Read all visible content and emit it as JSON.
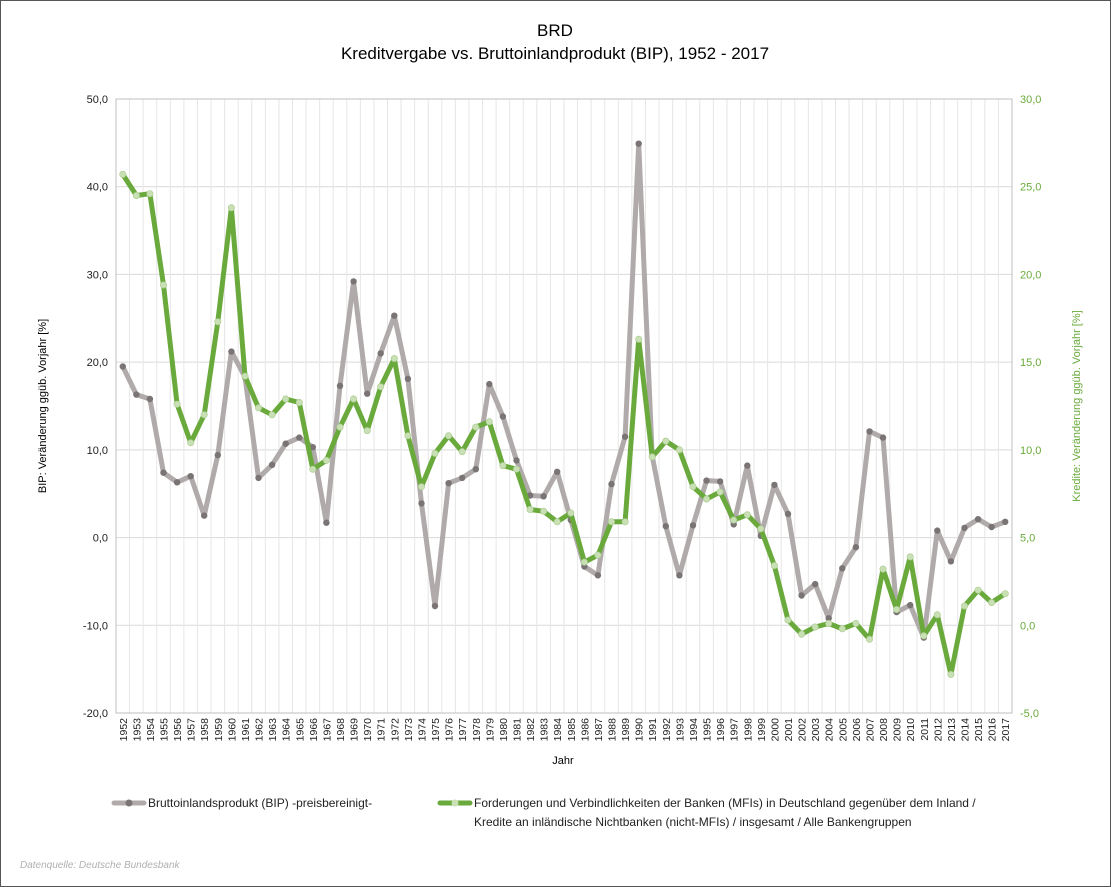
{
  "chart_data": {
    "type": "line",
    "title": "BRD",
    "subtitle": "Kreditvergabe vs. Bruttoinlandprodukt (BIP), 1952 - 2017",
    "xlabel": "Jahr",
    "ylabel_left": "BIP: Veränderung ggüb. Vorjahr [%]",
    "ylabel_right": "Kredite: Veränderung ggüb. Vorjahr [%]",
    "ylim_left": [
      -20,
      50
    ],
    "ylim_right": [
      -5,
      30
    ],
    "yticks_left": [
      "50,0",
      "40,0",
      "30,0",
      "20,0",
      "10,0",
      "0,0",
      "-10,0",
      "-20,0"
    ],
    "yticks_right": [
      "30,0",
      "25,0",
      "20,0",
      "15,0",
      "10,0",
      "5,0",
      "0,0",
      "-5,0"
    ],
    "grid": true,
    "legend_position": "bottom",
    "x": [
      "1952",
      "1953",
      "1954",
      "1955",
      "1956",
      "1957",
      "1958",
      "1959",
      "1960",
      "1961",
      "1962",
      "1963",
      "1964",
      "1965",
      "1966",
      "1967",
      "1968",
      "1969",
      "1970",
      "1971",
      "1972",
      "1973",
      "1974",
      "1975",
      "1976",
      "1977",
      "1978",
      "1979",
      "1980",
      "1981",
      "1982",
      "1983",
      "1984",
      "1985",
      "1986",
      "1987",
      "1988",
      "1989",
      "1990",
      "1991",
      "1992",
      "1993",
      "1994",
      "1995",
      "1996",
      "1997",
      "1998",
      "1999",
      "2000",
      "2001",
      "2002",
      "2003",
      "2004",
      "2005",
      "2006",
      "2007",
      "2008",
      "2009",
      "2010",
      "2011",
      "2012",
      "2013",
      "2014",
      "2015",
      "2016",
      "2017"
    ],
    "series": [
      {
        "name": "Bruttoinlandsprodukt (BIP) -preisbereinigt-",
        "axis": "left",
        "color": "#b0aaaa",
        "marker_color": "#7a7474",
        "values": [
          19.5,
          16.3,
          15.8,
          7.4,
          6.3,
          7.0,
          2.5,
          9.4,
          21.2,
          18.3,
          6.8,
          8.3,
          10.7,
          11.4,
          10.3,
          1.7,
          17.3,
          29.2,
          16.4,
          21.0,
          25.3,
          18.1,
          3.9,
          -7.8,
          6.2,
          6.8,
          7.8,
          17.5,
          13.8,
          8.8,
          4.8,
          4.7,
          7.5,
          2.0,
          -3.3,
          -4.3,
          6.1,
          11.5,
          44.9,
          9.3,
          1.3,
          -4.3,
          1.4,
          6.5,
          6.4,
          1.5,
          8.2,
          0.2,
          6.0,
          2.7,
          -6.6,
          -5.3,
          -9.2,
          -3.5,
          -1.1,
          12.1,
          11.4,
          -8.5,
          -7.7,
          -11.4,
          0.8,
          -2.7,
          1.1,
          2.1,
          1.2,
          1.8
        ]
      },
      {
        "name": "Forderungen und Verbindlichkeiten der Banken (MFIs) in Deutschland gegenüber dem Inland / Kredite an inländische Nichtbanken (nicht-MFIs) / insgesamt / Alle Bankengruppen",
        "axis": "right",
        "color": "#6aaa3c",
        "marker_color": "#c8e0b4",
        "values": [
          25.7,
          24.5,
          24.6,
          19.4,
          12.6,
          10.4,
          12.0,
          17.3,
          23.8,
          14.2,
          12.4,
          12.0,
          12.9,
          12.7,
          8.9,
          9.4,
          11.3,
          12.9,
          11.1,
          13.6,
          15.2,
          10.8,
          7.9,
          9.8,
          10.8,
          9.9,
          11.3,
          11.6,
          9.1,
          8.9,
          6.6,
          6.5,
          5.9,
          6.4,
          3.6,
          4.0,
          5.9,
          5.9,
          16.3,
          9.6,
          10.5,
          10.0,
          7.9,
          7.2,
          7.6,
          6.0,
          6.3,
          5.5,
          3.4,
          0.3,
          -0.5,
          -0.1,
          0.1,
          -0.2,
          0.1,
          -0.8,
          3.2,
          0.9,
          3.9,
          -0.6,
          0.6,
          -2.8,
          1.1,
          2.0,
          1.3,
          1.8
        ]
      }
    ],
    "legend": [
      {
        "key": "gdp",
        "text": "Bruttoinlandsprodukt (BIP) -preisbereinigt-"
      },
      {
        "key": "credit",
        "line1": "Forderungen und Verbindlichkeiten der Banken (MFIs) in Deutschland gegenüber dem Inland /",
        "line2": "Kredite an inländische Nichtbanken (nicht-MFIs) / insgesamt / Alle Bankengruppen"
      }
    ],
    "source": "Datenquelle: Deutsche Bundesbank"
  }
}
